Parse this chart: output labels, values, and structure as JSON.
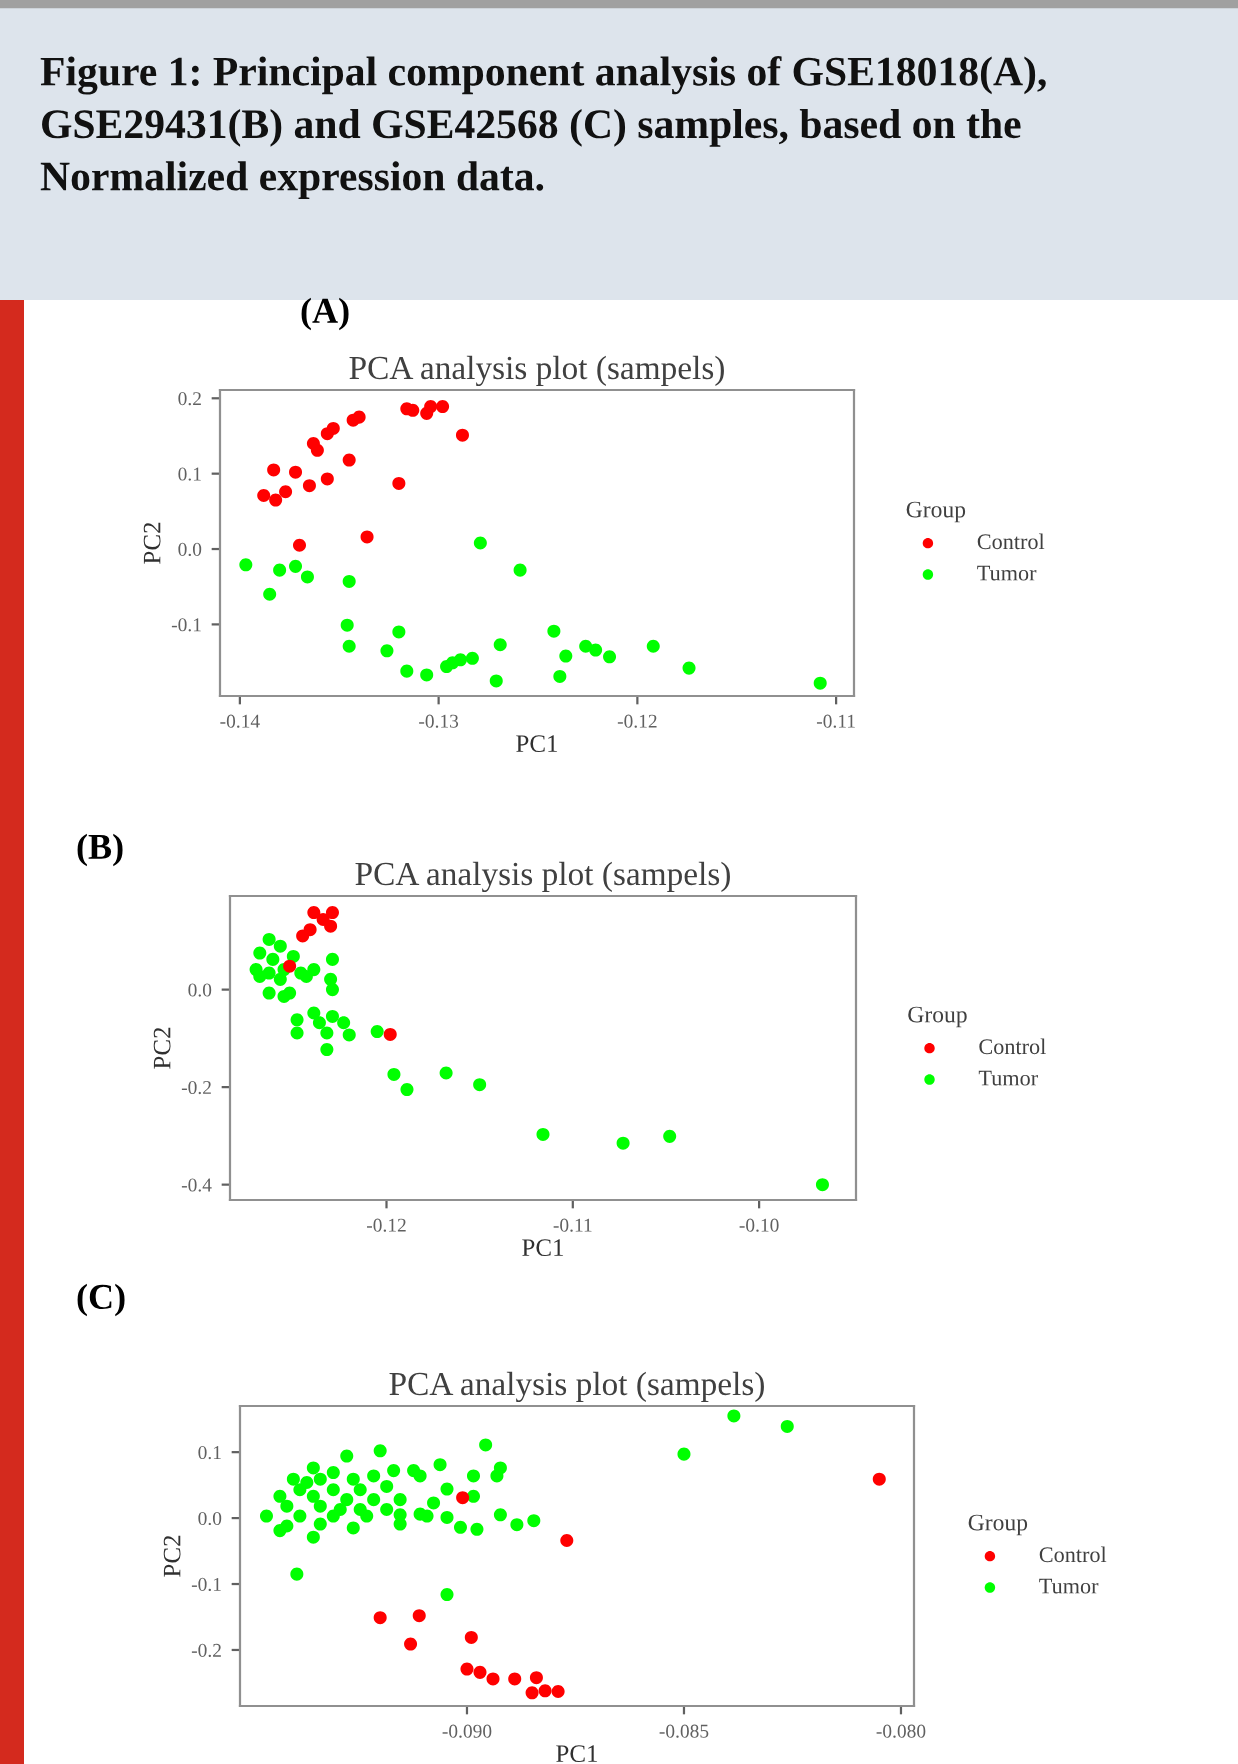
{
  "chart_data": [
    {
      "type": "scatter",
      "title": "PCA analysis plot (sampels)",
      "xlabel": "PC1",
      "ylabel": "PC2",
      "legend_title": "Group",
      "legend": "right",
      "grid": false,
      "marker": "circle",
      "annotations": [
        "Figure 1: Principal component analysis of GSE18018(A), GSE29431(B) and GSE42568 (C) samples, based on the Normalized expression data.",
        "(A)"
      ],
      "xlim": [
        -0.141,
        -0.1091
      ],
      "ylim": [
        -0.195,
        0.211
      ],
      "xticks": [
        {
          "value": -0.14,
          "label": "-0.14"
        },
        {
          "value": -0.13,
          "label": "-0.13"
        },
        {
          "value": -0.12,
          "label": "-0.12"
        },
        {
          "value": -0.11,
          "label": "-0.11"
        }
      ],
      "yticks": [
        {
          "value": -0.1,
          "label": "-0.1"
        },
        {
          "value": 0.0,
          "label": "0.0"
        },
        {
          "value": 0.1,
          "label": "0.1"
        },
        {
          "value": 0.2,
          "label": "0.2"
        }
      ],
      "series": [
        {
          "name": "Control",
          "color": "#ff0000",
          "x": [
            -0.1304,
            -0.1313,
            -0.1298,
            -0.1316,
            -0.1306,
            -0.134,
            -0.1343,
            -0.1353,
            -0.1356,
            -0.1363,
            -0.1361,
            -0.1288,
            -0.1345,
            -0.1383,
            -0.1372,
            -0.1356,
            -0.1365,
            -0.1377,
            -0.1388,
            -0.1382,
            -0.132,
            -0.137,
            -0.1336
          ],
          "values": [
            0.189,
            0.184,
            0.189,
            0.186,
            0.18,
            0.175,
            0.171,
            0.16,
            0.153,
            0.14,
            0.131,
            0.151,
            0.118,
            0.105,
            0.102,
            0.093,
            0.084,
            0.076,
            0.071,
            0.065,
            0.087,
            0.005,
            0.016
          ]
        },
        {
          "name": "Tumor",
          "color": "#00ff00",
          "x": [
            -0.1397,
            -0.138,
            -0.1372,
            -0.1366,
            -0.1345,
            -0.1385,
            -0.1279,
            -0.1259,
            -0.1346,
            -0.132,
            -0.1345,
            -0.1326,
            -0.1316,
            -0.1306,
            -0.1296,
            -0.1289,
            -0.1283,
            -0.1293,
            -0.1271,
            -0.1269,
            -0.1242,
            -0.1239,
            -0.1236,
            -0.1226,
            -0.1221,
            -0.1214,
            -0.1192,
            -0.1174,
            -0.1108
          ],
          "values": [
            -0.021,
            -0.028,
            -0.023,
            -0.037,
            -0.043,
            -0.06,
            0.008,
            -0.028,
            -0.101,
            -0.11,
            -0.129,
            -0.135,
            -0.162,
            -0.167,
            -0.156,
            -0.147,
            -0.145,
            -0.151,
            -0.175,
            -0.127,
            -0.109,
            -0.169,
            -0.142,
            -0.129,
            -0.134,
            -0.143,
            -0.129,
            -0.158,
            -0.178
          ]
        }
      ]
    },
    {
      "type": "scatter",
      "title": "PCA analysis plot (sampels)",
      "xlabel": "PC1",
      "ylabel": "PC2",
      "legend_title": "Group",
      "legend": "right",
      "grid": false,
      "marker": "circle",
      "annotations": [
        "(B)"
      ],
      "xlim": [
        -0.1284,
        -0.0948
      ],
      "ylim": [
        -0.4315,
        0.192
      ],
      "xticks": [
        {
          "value": -0.12,
          "label": "-0.12"
        },
        {
          "value": -0.11,
          "label": "-0.11"
        },
        {
          "value": -0.1,
          "label": "-0.10"
        }
      ],
      "yticks": [
        {
          "value": -0.4,
          "label": "-0.4"
        },
        {
          "value": -0.2,
          "label": "-0.2"
        },
        {
          "value": 0.0,
          "label": "0.0"
        }
      ],
      "series": [
        {
          "name": "Control",
          "color": "#ff0000",
          "x": [
            -0.1239,
            -0.1229,
            -0.123,
            -0.1234,
            -0.1241,
            -0.1245,
            -0.1252,
            -0.1198
          ],
          "values": [
            0.158,
            0.158,
            0.13,
            0.144,
            0.123,
            0.11,
            0.048,
            -0.092
          ]
        },
        {
          "name": "Tumor",
          "color": "#00ff00",
          "x": [
            -0.1263,
            -0.1257,
            -0.1268,
            -0.1261,
            -0.125,
            -0.1229,
            -0.127,
            -0.1263,
            -0.1255,
            -0.1246,
            -0.1239,
            -0.1268,
            -0.1257,
            -0.1243,
            -0.123,
            -0.1263,
            -0.1252,
            -0.1229,
            -0.1255,
            -0.1239,
            -0.1229,
            -0.1248,
            -0.1236,
            -0.1223,
            -0.1248,
            -0.1232,
            -0.122,
            -0.1205,
            -0.1232,
            -0.1196,
            -0.1168,
            -0.115,
            -0.1189,
            -0.1116,
            -0.1073,
            -0.1048,
            -0.0966
          ],
          "values": [
            0.103,
            0.089,
            0.075,
            0.062,
            0.068,
            0.062,
            0.041,
            0.034,
            0.041,
            0.034,
            0.041,
            0.027,
            0.021,
            0.027,
            0.021,
            -0.007,
            -0.007,
            0.0,
            -0.014,
            -0.048,
            -0.055,
            -0.062,
            -0.068,
            -0.068,
            -0.089,
            -0.089,
            -0.093,
            -0.086,
            -0.123,
            -0.174,
            -0.171,
            -0.195,
            -0.205,
            -0.297,
            -0.315,
            -0.301,
            -0.4
          ]
        }
      ]
    },
    {
      "type": "scatter",
      "title": "PCA analysis plot (sampels)",
      "xlabel": "PC1",
      "ylabel": "PC2",
      "legend_title": "Group",
      "legend": "right",
      "grid": false,
      "marker": "circle",
      "annotations": [
        "(C)"
      ],
      "xlim": [
        -0.09523,
        -0.0797
      ],
      "ylim": [
        -0.285,
        0.17
      ],
      "xticks": [
        {
          "value": -0.09,
          "label": "-0.090"
        },
        {
          "value": -0.085,
          "label": "-0.085"
        },
        {
          "value": -0.08,
          "label": "-0.080"
        }
      ],
      "yticks": [
        {
          "value": -0.2,
          "label": "-0.2"
        },
        {
          "value": -0.1,
          "label": "-0.1"
        },
        {
          "value": 0.0,
          "label": "0.0"
        },
        {
          "value": 0.1,
          "label": "0.1"
        }
      ],
      "series": [
        {
          "name": "Control",
          "color": "#ff0000",
          "x": [
            -0.0901,
            -0.0877,
            -0.0805,
            -0.092,
            -0.0911,
            -0.0913,
            -0.0899,
            -0.09,
            -0.0897,
            -0.0894,
            -0.0889,
            -0.0884,
            -0.0885,
            -0.0882,
            -0.0879
          ],
          "values": [
            0.031,
            -0.034,
            0.059,
            -0.151,
            -0.148,
            -0.191,
            -0.181,
            -0.229,
            -0.234,
            -0.244,
            -0.244,
            -0.242,
            -0.265,
            -0.262,
            -0.263
          ]
        },
        {
          "name": "Tumor",
          "color": "#00ff00",
          "x": [
            -0.08385,
            -0.08262,
            -0.085,
            -0.08957,
            -0.092,
            -0.09277,
            -0.09062,
            -0.08923,
            -0.08931,
            -0.08985,
            -0.09354,
            -0.09308,
            -0.09169,
            -0.09123,
            -0.094,
            -0.09338,
            -0.09262,
            -0.09215,
            -0.09108,
            -0.09046,
            -0.09185,
            -0.09385,
            -0.09308,
            -0.09246,
            -0.09431,
            -0.09354,
            -0.09277,
            -0.09215,
            -0.09154,
            -0.09077,
            -0.08985,
            -0.09415,
            -0.09338,
            -0.09246,
            -0.09185,
            -0.09462,
            -0.09385,
            -0.09308,
            -0.09231,
            -0.09154,
            -0.09108,
            -0.09046,
            -0.08923,
            -0.09415,
            -0.09338,
            -0.09262,
            -0.09154,
            -0.09015,
            -0.08977,
            -0.08885,
            -0.08846,
            -0.09431,
            -0.09354,
            -0.09392,
            -0.09046,
            -0.09092,
            -0.09292,
            -0.09369
          ],
          "values": [
            0.155,
            0.139,
            0.097,
            0.111,
            0.102,
            0.094,
            0.081,
            0.076,
            0.064,
            0.064,
            0.076,
            0.069,
            0.072,
            0.072,
            0.059,
            0.059,
            0.059,
            0.064,
            0.064,
            0.044,
            0.048,
            0.043,
            0.043,
            0.043,
            0.033,
            0.033,
            0.028,
            0.028,
            0.028,
            0.023,
            0.033,
            0.018,
            0.018,
            0.013,
            0.013,
            0.003,
            0.003,
            0.003,
            0.003,
            0.005,
            0.006,
            0.001,
            0.005,
            -0.012,
            -0.009,
            -0.015,
            -0.009,
            -0.014,
            -0.017,
            -0.01,
            -0.004,
            -0.019,
            -0.029,
            -0.085,
            -0.116,
            0.003,
            0.013,
            0.054
          ]
        }
      ]
    }
  ]
}
